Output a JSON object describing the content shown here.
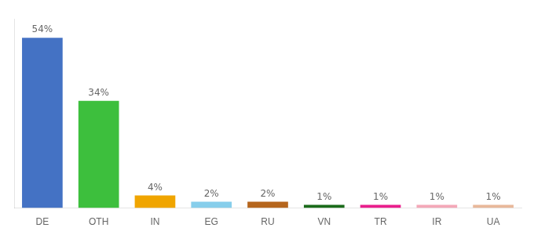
{
  "chart_data": {
    "type": "bar",
    "categories": [
      "DE",
      "OTH",
      "IN",
      "EG",
      "RU",
      "VN",
      "TR",
      "IR",
      "UA"
    ],
    "values": [
      54,
      34,
      4,
      2,
      2,
      1,
      1,
      1,
      1
    ],
    "value_labels": [
      "54%",
      "34%",
      "4%",
      "2%",
      "2%",
      "1%",
      "1%",
      "1%",
      "1%"
    ],
    "colors": [
      "#4472c4",
      "#3dbf3d",
      "#f0a500",
      "#87ceeb",
      "#b5651d",
      "#1a6b1a",
      "#e91e8c",
      "#f4a8b8",
      "#e8b89a"
    ],
    "ylim": [
      0,
      60
    ],
    "data_labels": true,
    "tick_labels": "x",
    "grid": false
  }
}
